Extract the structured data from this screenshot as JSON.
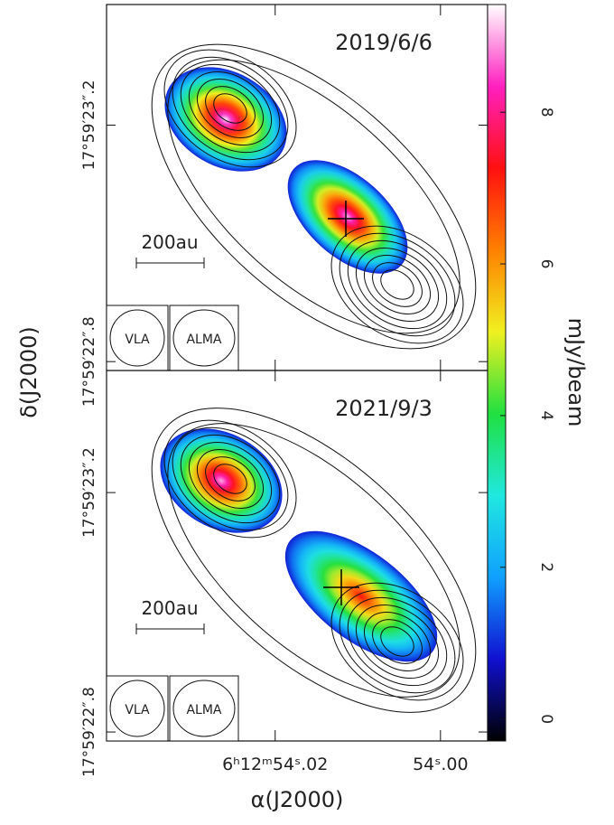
{
  "chart_data": {
    "type": "image",
    "x_label": "α(J2000)",
    "y_label": "δ(J2000)",
    "xlim": [
      54.0404,
      53.9943
    ],
    "xticks": [
      {
        "value": 54.02,
        "label": "6ʰ12ᵐ54ˢ.02"
      },
      {
        "value": 54.0,
        "label": "54ˢ.00"
      }
    ],
    "colorbar": {
      "label": "mJy/beam",
      "lim": [
        -0.29,
        9.42
      ],
      "ticks": [
        0,
        2,
        4,
        6,
        8
      ],
      "colormap": [
        "#000000",
        "#1010d0",
        "#10a0ff",
        "#20e8e0",
        "#20e040",
        "#f0f020",
        "#ff8000",
        "#ff1010",
        "#ff20c0",
        "#ffffff"
      ]
    },
    "ylim": [
      22.785,
      23.404
    ],
    "panels": [
      {
        "date": "2019/6/6",
        "scale_bar": "200au",
        "beams": [
          "VLA",
          "ALMA"
        ],
        "sources": [
          {
            "peak": 9.3
          },
          {
            "peak": 9.0
          }
        ],
        "yticks": [
          {
            "value": 23.2,
            "label": "17°59′23″.2"
          },
          {
            "value": 22.8,
            "label": "17°59′22″.8"
          }
        ]
      },
      {
        "date": "2021/9/3",
        "scale_bar": "200au",
        "beams": [
          "VLA",
          "ALMA"
        ],
        "sources": [
          {
            "peak": 9.0
          },
          {
            "peak": 7.2
          }
        ],
        "yticks": [
          {
            "value": 23.2,
            "label": "17°59′23″.2"
          },
          {
            "value": 22.8,
            "label": "17°59′22″.8"
          }
        ]
      }
    ]
  }
}
